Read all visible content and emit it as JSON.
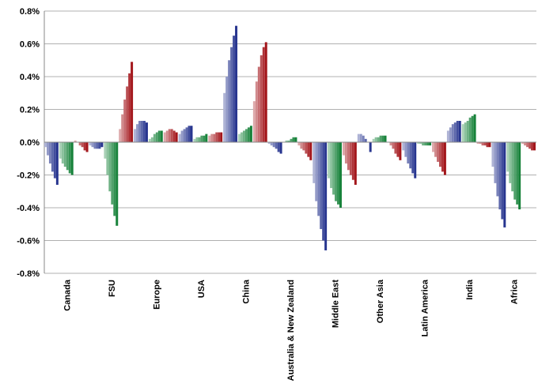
{
  "chart_data": {
    "type": "bar",
    "categories": [
      "Canada",
      "FSU",
      "Europe",
      "USA",
      "China",
      "Australia & New Zealand",
      "Middle East",
      "Other Asia",
      "Latin America",
      "India",
      "Africa"
    ],
    "series": [
      {
        "color": "#27358f",
        "values": [
          [
            -0.03,
            -0.08,
            -0.13,
            -0.18,
            -0.22,
            -0.26
          ],
          [
            -0.02,
            -0.03,
            -0.04,
            -0.04,
            -0.04,
            -0.03
          ],
          [
            0.08,
            0.11,
            0.13,
            0.13,
            0.13,
            0.12
          ],
          [
            0.05,
            0.07,
            0.08,
            0.09,
            0.1,
            0.1
          ],
          [
            0.3,
            0.4,
            0.5,
            0.58,
            0.65,
            0.71
          ],
          [
            -0.01,
            -0.02,
            -0.03,
            -0.04,
            -0.06,
            -0.07
          ],
          [
            -0.25,
            -0.36,
            -0.45,
            -0.53,
            -0.6,
            -0.66
          ],
          [
            0.05,
            0.05,
            0.04,
            0.02,
            0.0,
            -0.06
          ],
          [
            -0.05,
            -0.09,
            -0.13,
            -0.16,
            -0.19,
            -0.22
          ],
          [
            0.07,
            0.09,
            0.11,
            0.12,
            0.13,
            0.13
          ],
          [
            -0.15,
            -0.25,
            -0.33,
            -0.41,
            -0.47,
            -0.52
          ]
        ]
      },
      {
        "color": "#17823a",
        "values": [
          [
            -0.1,
            -0.13,
            -0.15,
            -0.17,
            -0.19,
            -0.2
          ],
          [
            -0.1,
            -0.2,
            -0.3,
            -0.38,
            -0.45,
            -0.51
          ],
          [
            0.02,
            0.03,
            0.05,
            0.06,
            0.07,
            0.07
          ],
          [
            0.02,
            0.03,
            0.03,
            0.04,
            0.04,
            0.05
          ],
          [
            0.05,
            0.06,
            0.07,
            0.08,
            0.09,
            0.1
          ],
          [
            0.0,
            0.01,
            0.01,
            0.02,
            0.03,
            0.03
          ],
          [
            -0.22,
            -0.28,
            -0.32,
            -0.36,
            -0.38,
            -0.4
          ],
          [
            0.02,
            0.03,
            0.03,
            0.04,
            0.04,
            0.04
          ],
          [
            -0.01,
            -0.01,
            -0.02,
            -0.02,
            -0.02,
            -0.02
          ],
          [
            0.11,
            0.12,
            0.13,
            0.15,
            0.16,
            0.17
          ],
          [
            -0.18,
            -0.25,
            -0.3,
            -0.35,
            -0.38,
            -0.41
          ]
        ]
      },
      {
        "color": "#a3161b",
        "values": [
          [
            0.01,
            0.0,
            -0.02,
            -0.03,
            -0.05,
            -0.06
          ],
          [
            0.08,
            0.17,
            0.26,
            0.34,
            0.42,
            0.49
          ],
          [
            0.06,
            0.07,
            0.08,
            0.08,
            0.07,
            0.06
          ],
          [
            0.04,
            0.05,
            0.05,
            0.06,
            0.06,
            0.06
          ],
          [
            0.25,
            0.37,
            0.46,
            0.53,
            0.58,
            0.61
          ],
          [
            -0.02,
            -0.04,
            -0.05,
            -0.07,
            -0.09,
            -0.11
          ],
          [
            -0.08,
            -0.13,
            -0.17,
            -0.2,
            -0.23,
            -0.26
          ],
          [
            0.0,
            -0.02,
            -0.04,
            -0.07,
            -0.09,
            -0.11
          ],
          [
            -0.06,
            -0.09,
            -0.12,
            -0.15,
            -0.18,
            -0.2
          ],
          [
            -0.01,
            -0.01,
            -0.02,
            -0.02,
            -0.03,
            -0.03
          ],
          [
            -0.01,
            -0.02,
            -0.03,
            -0.04,
            -0.05,
            -0.05
          ]
        ]
      }
    ],
    "ylim": [
      -0.8,
      0.8
    ],
    "yticks": [
      {
        "value": -0.8,
        "label": "-0.8%"
      },
      {
        "value": -0.6,
        "label": "-0.6%"
      },
      {
        "value": -0.4,
        "label": "-0.4%"
      },
      {
        "value": -0.2,
        "label": "-0.2%"
      },
      {
        "value": 0,
        "label": "0.0%"
      },
      {
        "value": 0.2,
        "label": "0.2%"
      },
      {
        "value": 0.4,
        "label": "0.4%"
      },
      {
        "value": 0.6,
        "label": "0.6%"
      },
      {
        "value": 0.8,
        "label": "0.8%"
      }
    ],
    "grid": true
  }
}
